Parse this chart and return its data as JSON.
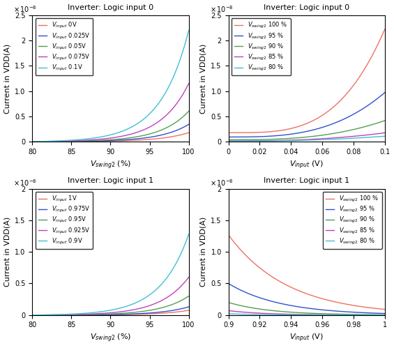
{
  "colors": {
    "red": "#f07060",
    "blue": "#3050d0",
    "green": "#50a050",
    "magenta": "#c040c0",
    "cyan": "#40c0d0"
  },
  "top_left": {
    "title": "Inverter: Logic input 0",
    "xlabel": "V_swing2 (%)",
    "ylabel": "Current in VDD(A)",
    "xlim": [
      80,
      100
    ],
    "ylim": [
      0,
      2.5e-08
    ],
    "lines": [
      {
        "label_pre": "V_input",
        "label_post": " 0V",
        "color": "red",
        "scale": 0.175,
        "exp": 5.5
      },
      {
        "label_pre": "V_input",
        "label_post": " 0.025V",
        "color": "blue",
        "scale": 0.34,
        "exp": 5.5
      },
      {
        "label_pre": "V_input",
        "label_post": " 0.05V",
        "color": "green",
        "scale": 0.6,
        "exp": 5.5
      },
      {
        "label_pre": "V_input",
        "label_post": " 0.075V",
        "color": "magenta",
        "scale": 1.15,
        "exp": 5.5
      },
      {
        "label_pre": "V_input",
        "label_post": " 0.1V",
        "color": "cyan",
        "scale": 2.2,
        "exp": 5.5
      }
    ]
  },
  "top_right": {
    "title": "Inverter: Logic input 0",
    "xlabel": "V_input (V)",
    "ylabel": "Current in VDD(A)",
    "xlim": [
      0,
      0.1
    ],
    "ylim": [
      0,
      2.5e-08
    ],
    "lines": [
      {
        "label_pre": "V_swing2",
        "label_post": " 100 %",
        "color": "red",
        "a": 0.175,
        "b": 2.05,
        "exp": 3.5
      },
      {
        "label_pre": "V_swing2",
        "label_post": " 95 %",
        "color": "blue",
        "a": 0.09,
        "b": 0.88,
        "exp": 3.0
      },
      {
        "label_pre": "V_swing2",
        "label_post": " 90 %",
        "color": "green",
        "a": 0.035,
        "b": 0.38,
        "exp": 2.8
      },
      {
        "label_pre": "V_swing2",
        "label_post": " 85 %",
        "color": "magenta",
        "a": 0.012,
        "b": 0.16,
        "exp": 2.5
      },
      {
        "label_pre": "V_swing2",
        "label_post": " 80 %",
        "color": "cyan",
        "a": 0.006,
        "b": 0.1,
        "exp": 2.3
      }
    ]
  },
  "bot_left": {
    "title": "Inverter: Logic input 1",
    "xlabel": "V_swing2 (%)",
    "ylabel": "Current in VDD(A)",
    "xlim": [
      80,
      100
    ],
    "ylim": [
      0,
      2e-08
    ],
    "lines": [
      {
        "label_pre": "V_input",
        "label_post": " 1V",
        "color": "red",
        "scale": 0.075,
        "exp": 5.5
      },
      {
        "label_pre": "V_input",
        "label_post": " 0.975V",
        "color": "blue",
        "scale": 0.13,
        "exp": 5.5
      },
      {
        "label_pre": "V_input",
        "label_post": " 0.95V",
        "color": "green",
        "scale": 0.3,
        "exp": 5.5
      },
      {
        "label_pre": "V_input",
        "label_post": " 0.925V",
        "color": "magenta",
        "scale": 0.6,
        "exp": 5.5
      },
      {
        "label_pre": "V_input",
        "label_post": " 0.9V",
        "color": "cyan",
        "scale": 1.28,
        "exp": 5.5
      }
    ]
  },
  "bot_right": {
    "title": "Inverter: Logic input 1",
    "xlabel": "V_input (V)",
    "ylabel": "Current in VDD(A)",
    "xlim": [
      0.9,
      1.0
    ],
    "ylim": [
      0,
      2e-08
    ],
    "lines": [
      {
        "label_pre": "V_swing2",
        "label_post": " 100 %",
        "color": "red",
        "start": 1.27,
        "end": 0.09,
        "k": 3.5
      },
      {
        "label_pre": "V_swing2",
        "label_post": " 95 %",
        "color": "blue",
        "start": 0.5,
        "end": 0.025,
        "k": 4.0
      },
      {
        "label_pre": "V_swing2",
        "label_post": " 90 %",
        "color": "green",
        "start": 0.2,
        "end": 0.005,
        "k": 5.0
      },
      {
        "label_pre": "V_swing2",
        "label_post": " 85 %",
        "color": "magenta",
        "start": 0.07,
        "end": 0.001,
        "k": 5.5
      },
      {
        "label_pre": "V_swing2",
        "label_post": " 80 %",
        "color": "cyan",
        "start": 0.02,
        "end": 0.0003,
        "k": 6.0
      }
    ]
  }
}
